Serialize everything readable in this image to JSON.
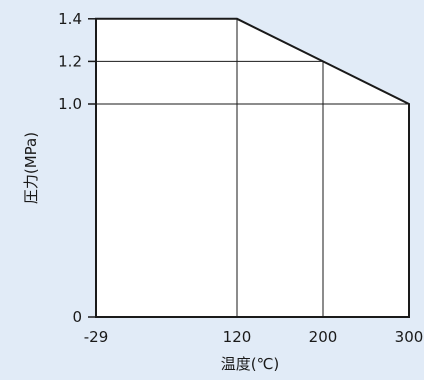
{
  "chart_data": {
    "type": "area",
    "title": "",
    "xlabel": "温度(℃)",
    "ylabel": "圧力(MPa)",
    "x_ticks": [
      {
        "value": -29,
        "label": "-29"
      },
      {
        "value": 120,
        "label": "120"
      },
      {
        "value": 200,
        "label": "200"
      },
      {
        "value": 300,
        "label": "300"
      }
    ],
    "y_ticks": [
      {
        "value": 0,
        "label": "0"
      },
      {
        "value": 1.0,
        "label": "1.0"
      },
      {
        "value": 1.2,
        "label": "1.2"
      },
      {
        "value": 1.4,
        "label": "1.4"
      }
    ],
    "series": [
      {
        "points": [
          {
            "x": -29,
            "y": 1.4
          },
          {
            "x": 120,
            "y": 1.4
          },
          {
            "x": 200,
            "y": 1.2
          },
          {
            "x": 300,
            "y": 1.0
          }
        ]
      }
    ],
    "fill_color": "#ffffff",
    "background_color": "#e1ebf7",
    "line_color": "#1a1a1a",
    "grid": "lines at labelled ticks inside the area"
  }
}
